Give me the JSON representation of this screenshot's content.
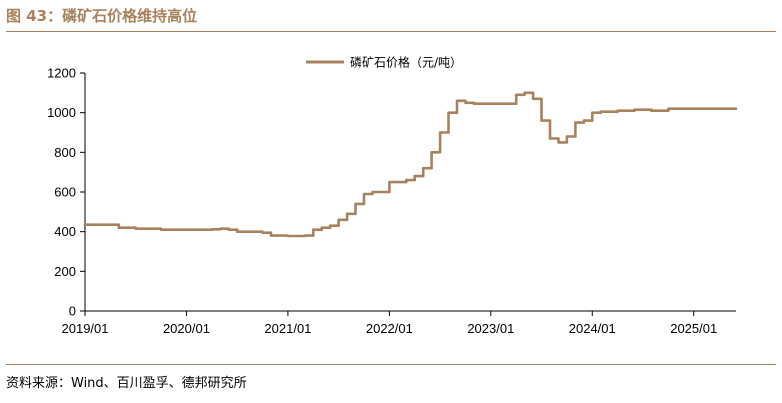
{
  "header": {
    "title": "图 43：磷矿石价格维持高位"
  },
  "footer": {
    "source": "资料来源：Wind、百川盈孚、德邦研究所"
  },
  "chart_data": {
    "type": "line",
    "title": "",
    "xlabel": "",
    "ylabel": "",
    "ylim": [
      0,
      1200
    ],
    "yticks": [
      0,
      200,
      400,
      600,
      800,
      1000,
      1200
    ],
    "xlim": [
      "2019-01",
      "2025-06"
    ],
    "xticks": [
      "2019/01",
      "2020/01",
      "2021/01",
      "2022/01",
      "2023/01",
      "2024/01",
      "2025/01"
    ],
    "grid": false,
    "legend_position": "top-center",
    "colors": {
      "series": "#a8825c",
      "axis": "#000000",
      "accent": "#a8825c"
    },
    "series": [
      {
        "name": "磷矿石价格（元/吨）",
        "step": true,
        "points": [
          [
            "2019-01",
            435
          ],
          [
            "2019-04",
            435
          ],
          [
            "2019-05",
            420
          ],
          [
            "2019-07",
            415
          ],
          [
            "2019-10",
            410
          ],
          [
            "2020-02",
            410
          ],
          [
            "2020-04",
            412
          ],
          [
            "2020-05",
            415
          ],
          [
            "2020-06",
            410
          ],
          [
            "2020-07",
            400
          ],
          [
            "2020-10",
            395
          ],
          [
            "2020-11",
            380
          ],
          [
            "2021-01",
            378
          ],
          [
            "2021-03",
            380
          ],
          [
            "2021-04",
            410
          ],
          [
            "2021-05",
            420
          ],
          [
            "2021-06",
            430
          ],
          [
            "2021-07",
            460
          ],
          [
            "2021-08",
            490
          ],
          [
            "2021-09",
            540
          ],
          [
            "2021-10",
            590
          ],
          [
            "2021-11",
            600
          ],
          [
            "2022-01",
            650
          ],
          [
            "2022-03",
            660
          ],
          [
            "2022-04",
            680
          ],
          [
            "2022-05",
            720
          ],
          [
            "2022-06",
            800
          ],
          [
            "2022-07",
            900
          ],
          [
            "2022-08",
            1000
          ],
          [
            "2022-09",
            1060
          ],
          [
            "2022-10",
            1050
          ],
          [
            "2022-11",
            1045
          ],
          [
            "2022-12",
            1045
          ],
          [
            "2023-03",
            1045
          ],
          [
            "2023-04",
            1090
          ],
          [
            "2023-05",
            1100
          ],
          [
            "2023-06",
            1070
          ],
          [
            "2023-07",
            960
          ],
          [
            "2023-08",
            870
          ],
          [
            "2023-09",
            850
          ],
          [
            "2023-10",
            880
          ],
          [
            "2023-11",
            950
          ],
          [
            "2023-12",
            960
          ],
          [
            "2024-01",
            1000
          ],
          [
            "2024-02",
            1005
          ],
          [
            "2024-04",
            1010
          ],
          [
            "2024-06",
            1015
          ],
          [
            "2024-08",
            1010
          ],
          [
            "2024-10",
            1020
          ],
          [
            "2025-01",
            1020
          ],
          [
            "2025-06",
            1020
          ]
        ]
      }
    ]
  }
}
